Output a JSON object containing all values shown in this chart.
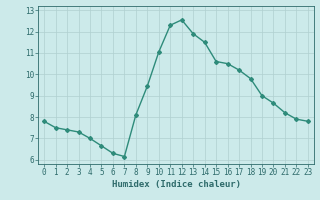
{
  "x_values": [
    0,
    1,
    2,
    3,
    4,
    5,
    6,
    7,
    8,
    9,
    10,
    11,
    12,
    13,
    14,
    15,
    16,
    17,
    18,
    19,
    20,
    21,
    22,
    23
  ],
  "y_values": [
    7.8,
    7.5,
    7.4,
    7.3,
    7.0,
    6.65,
    6.3,
    6.15,
    8.1,
    9.45,
    11.05,
    12.3,
    12.55,
    11.9,
    11.5,
    10.6,
    10.5,
    10.2,
    9.8,
    9.0,
    8.65,
    8.2,
    7.9,
    7.8
  ],
  "line_color": "#2e8b7a",
  "marker": "D",
  "marker_size": 2,
  "background_color": "#cceaea",
  "grid_color": "#b0d0d0",
  "tick_color": "#2e6b6b",
  "xlabel": "Humidex (Indice chaleur)",
  "xlabel_fontsize": 6.5,
  "xlim": [
    -0.5,
    23.5
  ],
  "ylim": [
    5.8,
    13.2
  ],
  "yticks": [
    6,
    7,
    8,
    9,
    10,
    11,
    12,
    13
  ],
  "xticks": [
    0,
    1,
    2,
    3,
    4,
    5,
    6,
    7,
    8,
    9,
    10,
    11,
    12,
    13,
    14,
    15,
    16,
    17,
    18,
    19,
    20,
    21,
    22,
    23
  ],
  "tick_fontsize": 5.5,
  "linewidth": 1.0
}
